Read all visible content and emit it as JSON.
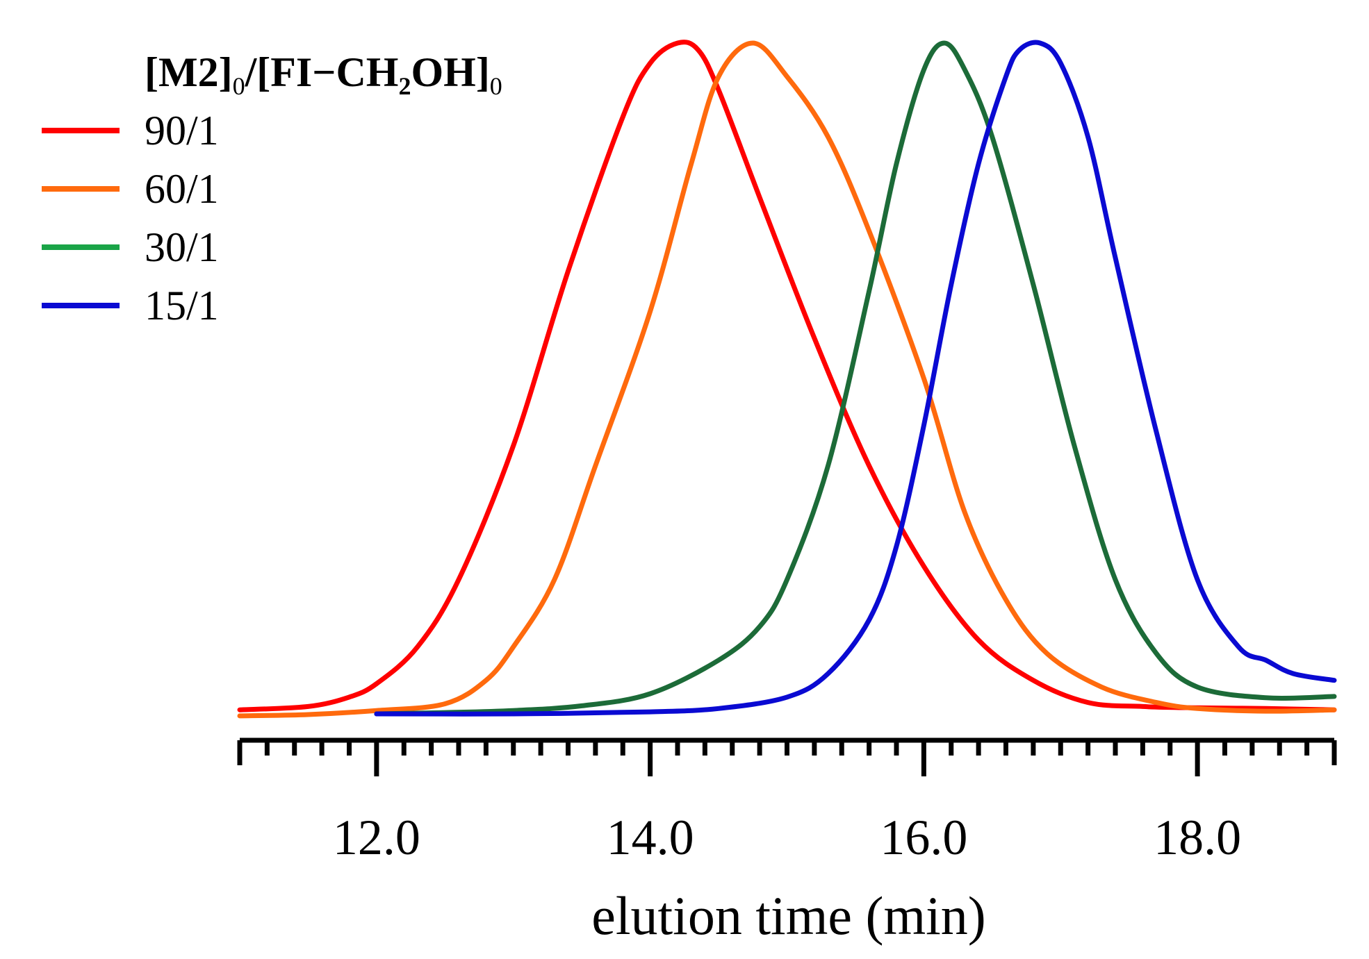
{
  "chart_data": {
    "type": "line",
    "title": "",
    "xlabel": "elution time (min)",
    "ylabel": "",
    "xlim": [
      11.0,
      19.0
    ],
    "x_ticks": [
      "12.0",
      "14.0",
      "16.0",
      "18.0"
    ],
    "x_tick_values": [
      12.0,
      14.0,
      16.0,
      18.0
    ],
    "minor_tick_step": 0.2,
    "y_axis_visible": false,
    "legend": {
      "title_parts": [
        "[",
        "M2",
        "]",
        "0",
        "/[",
        "FI−CH",
        "2",
        "OH",
        "]",
        "0"
      ],
      "placement": "top-left"
    },
    "series": [
      {
        "name": "90/1",
        "color": "#ff0000",
        "x": [
          11.0,
          11.5,
          11.8,
          12.0,
          12.3,
          12.6,
          13.0,
          13.4,
          13.8,
          14.0,
          14.2,
          14.35,
          14.5,
          14.8,
          15.2,
          15.6,
          16.0,
          16.4,
          16.8,
          17.2,
          17.6,
          18.0,
          18.5,
          19.0
        ],
        "y": [
          0.006,
          0.011,
          0.025,
          0.045,
          0.1,
          0.2,
          0.4,
          0.66,
          0.89,
          0.97,
          1.0,
          0.99,
          0.93,
          0.77,
          0.56,
          0.37,
          0.22,
          0.11,
          0.05,
          0.017,
          0.011,
          0.009,
          0.008,
          0.006
        ]
      },
      {
        "name": "60/1",
        "color": "#ff6a0d",
        "x": [
          11.0,
          11.5,
          12.0,
          12.5,
          12.8,
          13.0,
          13.3,
          13.6,
          14.0,
          14.3,
          14.5,
          14.75,
          15.0,
          15.3,
          15.6,
          16.0,
          16.3,
          16.6,
          16.9,
          17.3,
          17.7,
          18.0,
          18.5,
          19.0
        ],
        "y": [
          -0.003,
          -0.001,
          0.005,
          0.015,
          0.05,
          0.1,
          0.2,
          0.37,
          0.6,
          0.82,
          0.95,
          1.0,
          0.95,
          0.86,
          0.72,
          0.5,
          0.3,
          0.17,
          0.09,
          0.04,
          0.017,
          0.008,
          0.004,
          0.006
        ]
      },
      {
        "name": "30/1",
        "color": "#1c6b38",
        "x": [
          12.0,
          12.5,
          13.0,
          13.5,
          14.0,
          14.5,
          14.8,
          15.0,
          15.3,
          15.6,
          15.8,
          16.0,
          16.15,
          16.3,
          16.5,
          16.8,
          17.1,
          17.4,
          17.7,
          18.0,
          18.5,
          19.0
        ],
        "y": [
          0.0,
          0.002,
          0.005,
          0.012,
          0.03,
          0.08,
          0.13,
          0.2,
          0.37,
          0.63,
          0.82,
          0.96,
          1.0,
          0.96,
          0.86,
          0.64,
          0.4,
          0.2,
          0.09,
          0.04,
          0.024,
          0.026
        ]
      },
      {
        "name": "15/1",
        "color": "#0a0ad2",
        "x": [
          12.0,
          13.0,
          14.0,
          14.5,
          15.0,
          15.3,
          15.6,
          15.8,
          16.0,
          16.2,
          16.4,
          16.6,
          16.7,
          16.85,
          17.0,
          17.2,
          17.4,
          17.7,
          18.0,
          18.3,
          18.5,
          18.7,
          19.0
        ],
        "y": [
          0.0,
          0.0,
          0.003,
          0.008,
          0.025,
          0.06,
          0.14,
          0.25,
          0.43,
          0.64,
          0.82,
          0.95,
          0.99,
          1.0,
          0.97,
          0.86,
          0.68,
          0.42,
          0.2,
          0.1,
          0.08,
          0.06,
          0.05
        ]
      }
    ]
  }
}
